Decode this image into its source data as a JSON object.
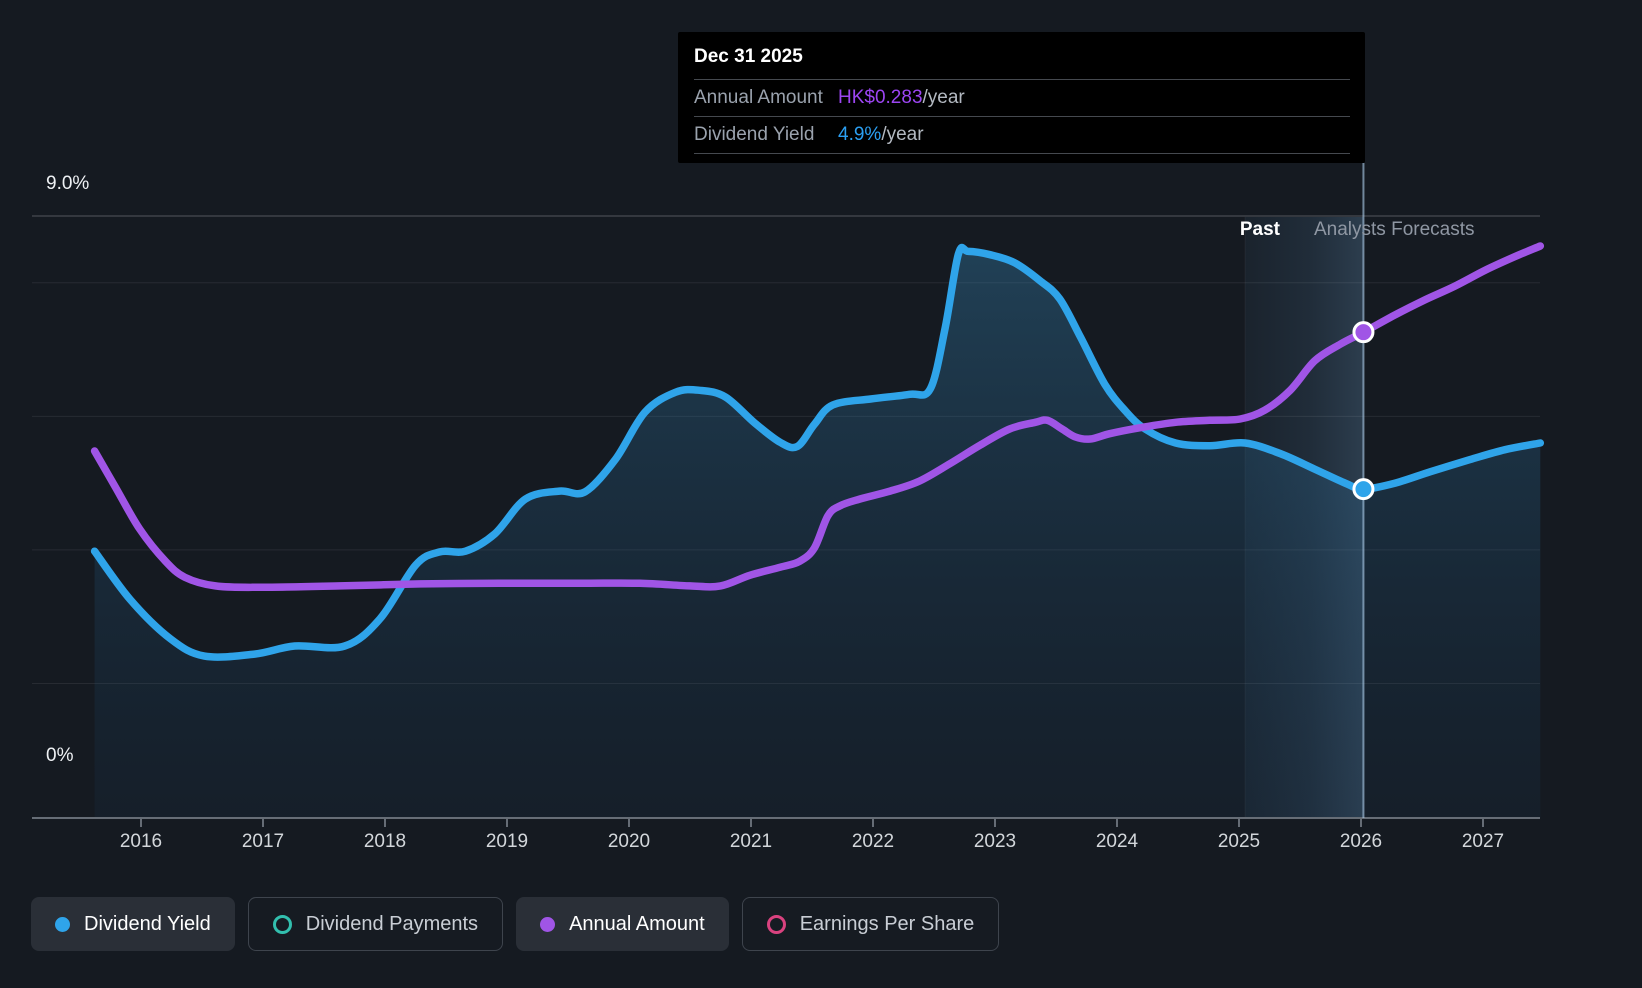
{
  "y_axis": {
    "top_label": "9.0%",
    "bottom_label": "0%"
  },
  "annotations": {
    "past_label": "Past",
    "forecast_label": "Analysts Forecasts"
  },
  "tooltip": {
    "date": "Dec 31 2025",
    "rows": [
      {
        "label": "Annual Amount",
        "value": "HK$0.283",
        "suffix": "/year",
        "color": "#9c45f2"
      },
      {
        "label": "Dividend Yield",
        "value": "4.9%",
        "suffix": "/year",
        "color": "#2b9ff2"
      }
    ]
  },
  "legend": [
    {
      "label": "Dividend Yield",
      "color": "#2fa4ea",
      "style": "filled",
      "active": true
    },
    {
      "label": "Dividend Payments",
      "color": "#32bfae",
      "style": "ring",
      "active": false
    },
    {
      "label": "Annual Amount",
      "color": "#a055e6",
      "style": "filled",
      "active": true
    },
    {
      "label": "Earnings Per Share",
      "color": "#d9427f",
      "style": "ring",
      "active": false
    }
  ],
  "chart_data": {
    "type": "line",
    "title": "Dividend yield history and analysts forecasts",
    "x_ticks": [
      2016,
      2017,
      2018,
      2019,
      2020,
      2021,
      2022,
      2023,
      2024,
      2025,
      2026,
      2027
    ],
    "x_range": [
      2015.6,
      2027.5
    ],
    "ylim": [
      0,
      9.0
    ],
    "y_top_gridline_pct": 9.0,
    "y_gridlines_pct": [
      8,
      6,
      4,
      2
    ],
    "grid": true,
    "legend_position": "bottom",
    "forecast_band": {
      "from": 2025.05,
      "to": 2026.02
    },
    "hover": {
      "x": 2026.02,
      "date": "Dec 31 2025",
      "annual_amount": "HK$0.283/year",
      "dividend_yield": "4.9%/year"
    },
    "series": [
      {
        "name": "Dividend Yield",
        "unit": "%",
        "color": "#2fa4ea",
        "area": true,
        "points": [
          [
            2015.62,
            3.98
          ],
          [
            2015.91,
            3.26
          ],
          [
            2016.24,
            2.67
          ],
          [
            2016.52,
            2.41
          ],
          [
            2016.93,
            2.44
          ],
          [
            2017.26,
            2.56
          ],
          [
            2017.67,
            2.56
          ],
          [
            2017.96,
            2.97
          ],
          [
            2018.25,
            3.77
          ],
          [
            2018.45,
            3.97
          ],
          [
            2018.66,
            3.98
          ],
          [
            2018.9,
            4.24
          ],
          [
            2019.15,
            4.76
          ],
          [
            2019.43,
            4.88
          ],
          [
            2019.64,
            4.87
          ],
          [
            2019.89,
            5.36
          ],
          [
            2020.13,
            6.06
          ],
          [
            2020.38,
            6.36
          ],
          [
            2020.58,
            6.39
          ],
          [
            2020.79,
            6.29
          ],
          [
            2021.03,
            5.9
          ],
          [
            2021.24,
            5.61
          ],
          [
            2021.38,
            5.55
          ],
          [
            2021.52,
            5.88
          ],
          [
            2021.67,
            6.17
          ],
          [
            2021.98,
            6.26
          ],
          [
            2022.3,
            6.33
          ],
          [
            2022.47,
            6.41
          ],
          [
            2022.59,
            7.31
          ],
          [
            2022.7,
            8.43
          ],
          [
            2022.78,
            8.47
          ],
          [
            2022.96,
            8.42
          ],
          [
            2023.16,
            8.3
          ],
          [
            2023.37,
            8.03
          ],
          [
            2023.53,
            7.76
          ],
          [
            2023.7,
            7.19
          ],
          [
            2023.9,
            6.48
          ],
          [
            2024.07,
            6.08
          ],
          [
            2024.23,
            5.81
          ],
          [
            2024.48,
            5.6
          ],
          [
            2024.76,
            5.56
          ],
          [
            2025.05,
            5.6
          ],
          [
            2025.34,
            5.44
          ],
          [
            2025.62,
            5.21
          ],
          [
            2025.87,
            5.0
          ],
          [
            2026.02,
            4.91
          ],
          [
            2026.28,
            5.0
          ],
          [
            2026.57,
            5.17
          ],
          [
            2026.89,
            5.35
          ],
          [
            2027.18,
            5.5
          ],
          [
            2027.47,
            5.6
          ]
        ]
      },
      {
        "name": "Annual Amount",
        "unit": "pct-equivalent",
        "color": "#a055e6",
        "area": false,
        "points": [
          [
            2015.62,
            5.48
          ],
          [
            2015.79,
            4.94
          ],
          [
            2015.99,
            4.31
          ],
          [
            2016.2,
            3.83
          ],
          [
            2016.36,
            3.59
          ],
          [
            2016.61,
            3.46
          ],
          [
            2016.98,
            3.44
          ],
          [
            2017.63,
            3.46
          ],
          [
            2018.29,
            3.49
          ],
          [
            2018.94,
            3.5
          ],
          [
            2019.6,
            3.5
          ],
          [
            2020.09,
            3.5
          ],
          [
            2020.5,
            3.46
          ],
          [
            2020.75,
            3.46
          ],
          [
            2020.99,
            3.62
          ],
          [
            2021.24,
            3.74
          ],
          [
            2021.4,
            3.83
          ],
          [
            2021.52,
            4.03
          ],
          [
            2021.63,
            4.51
          ],
          [
            2021.73,
            4.66
          ],
          [
            2021.89,
            4.76
          ],
          [
            2022.14,
            4.88
          ],
          [
            2022.38,
            5.03
          ],
          [
            2022.63,
            5.29
          ],
          [
            2022.88,
            5.57
          ],
          [
            2023.12,
            5.81
          ],
          [
            2023.33,
            5.91
          ],
          [
            2023.43,
            5.94
          ],
          [
            2023.55,
            5.81
          ],
          [
            2023.66,
            5.69
          ],
          [
            2023.78,
            5.66
          ],
          [
            2023.94,
            5.74
          ],
          [
            2024.19,
            5.83
          ],
          [
            2024.48,
            5.91
          ],
          [
            2024.76,
            5.94
          ],
          [
            2025.01,
            5.96
          ],
          [
            2025.21,
            6.09
          ],
          [
            2025.42,
            6.39
          ],
          [
            2025.62,
            6.83
          ],
          [
            2025.83,
            7.08
          ],
          [
            2026.02,
            7.26
          ],
          [
            2026.28,
            7.52
          ],
          [
            2026.52,
            7.74
          ],
          [
            2026.77,
            7.95
          ],
          [
            2027.02,
            8.19
          ],
          [
            2027.26,
            8.39
          ],
          [
            2027.47,
            8.55
          ]
        ]
      }
    ],
    "markers": [
      {
        "series": "Annual Amount",
        "x": 2026.02,
        "y": 7.26,
        "color": "#a055e6"
      },
      {
        "series": "Dividend Yield",
        "x": 2026.02,
        "y": 4.91,
        "color": "#2fa4ea"
      }
    ]
  }
}
